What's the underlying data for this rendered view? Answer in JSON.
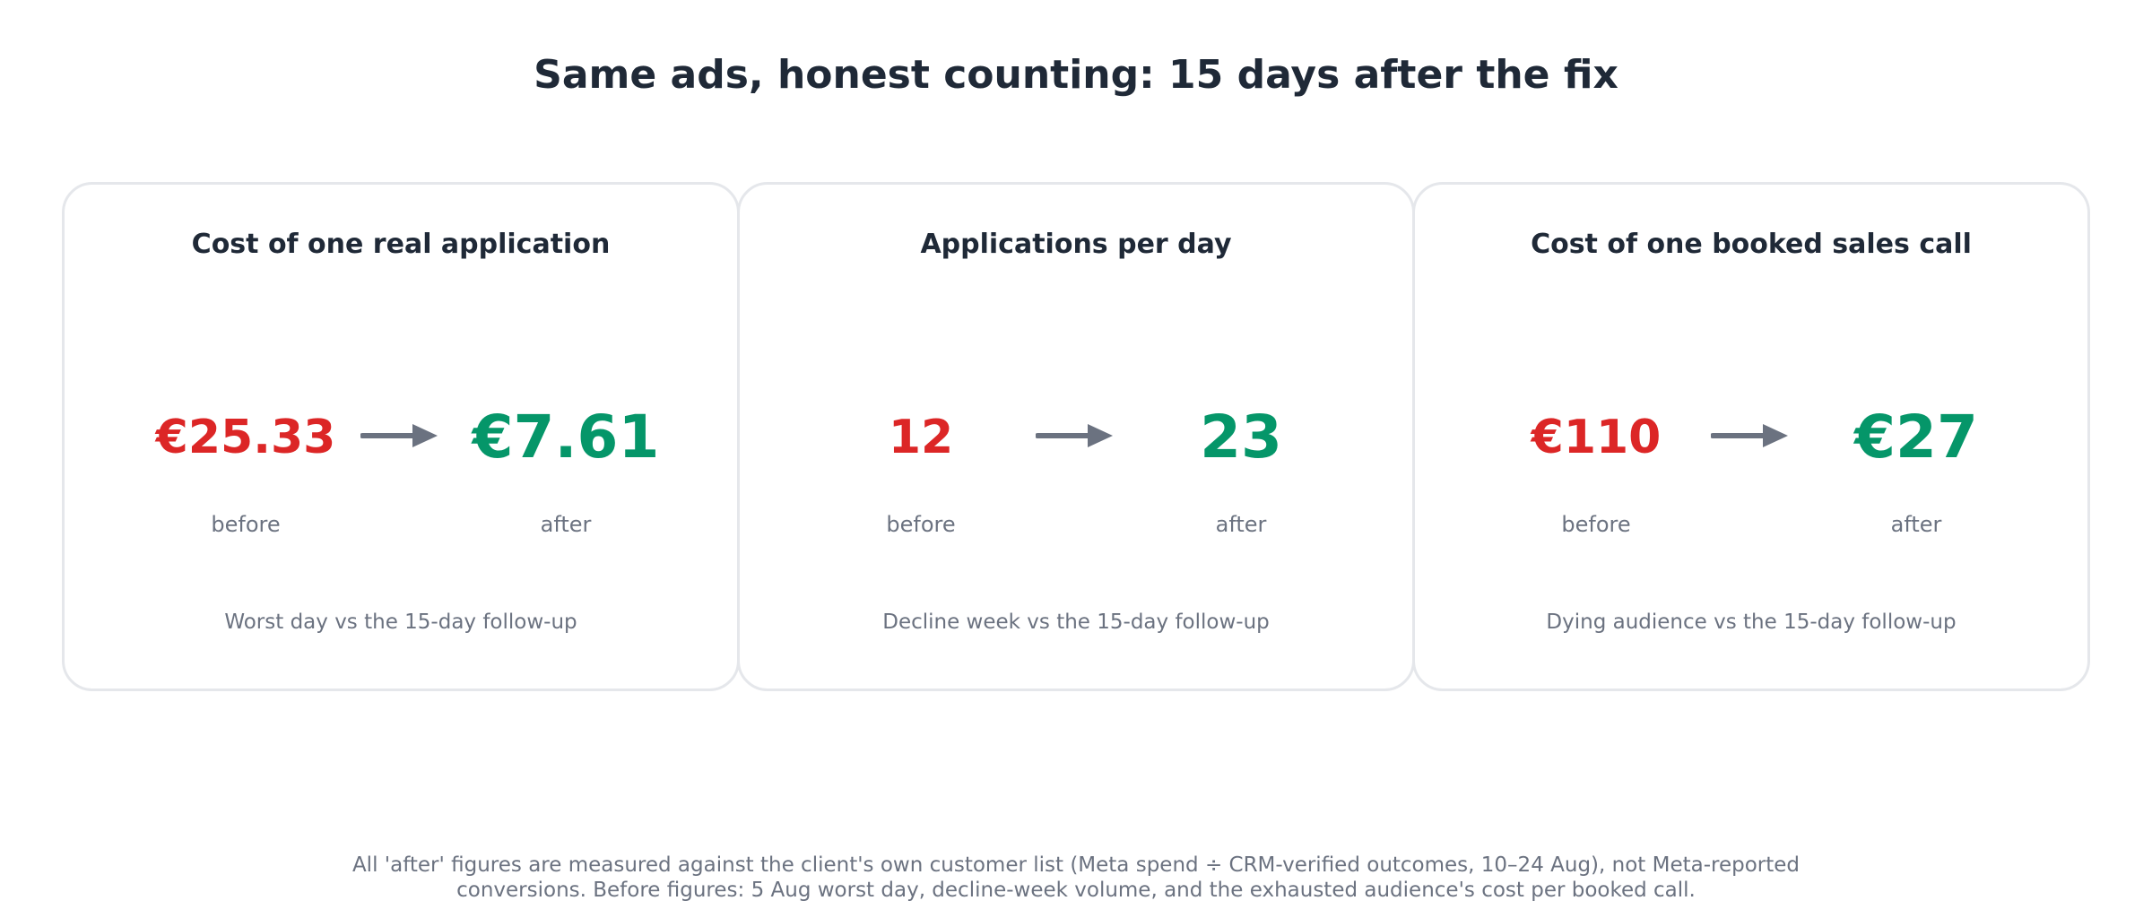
{
  "title": "Same ads, honest counting: 15 days after the fix",
  "colors": {
    "before": "#dc2626",
    "after": "#059669",
    "arrow": "#6b7280",
    "text": "#1f2937"
  },
  "chart_data": {
    "type": "table",
    "columns": [
      "before",
      "after"
    ],
    "rows": [
      {
        "metric": "Cost of one real application",
        "before": "€25.33",
        "after": "€7.61",
        "before_value": 25.33,
        "after_value": 7.61,
        "unit": "EUR",
        "caption": "Worst day vs the 15-day follow-up"
      },
      {
        "metric": "Applications per day",
        "before": "12",
        "after": "23",
        "before_value": 12,
        "after_value": 23,
        "caption": "Decline week vs the 15-day follow-up"
      },
      {
        "metric": "Cost of one booked sales call",
        "before": "€110",
        "after": "€27",
        "before_value": 110,
        "after_value": 27,
        "unit": "EUR",
        "caption": "Dying audience vs the 15-day follow-up"
      }
    ]
  },
  "cards": [
    {
      "title": "Cost of one real application",
      "before": "€25.33",
      "after": "€7.61",
      "before_label": "before",
      "after_label": "after",
      "caption": "Worst day vs the 15-day follow-up"
    },
    {
      "title": "Applications per day",
      "before": "12",
      "after": "23",
      "before_label": "before",
      "after_label": "after",
      "caption": "Decline week vs the 15-day follow-up"
    },
    {
      "title": "Cost of one booked sales call",
      "before": "€110",
      "after": "€27",
      "before_label": "before",
      "after_label": "after",
      "caption": "Dying audience vs the 15-day follow-up"
    }
  ],
  "footnote": {
    "line1": "All 'after' figures are measured against the client's own customer list (Meta spend ÷ CRM-verified outcomes, 10–24 Aug), not Meta-reported",
    "line2": "conversions. Before figures: 5 Aug worst day, decline-week volume, and the exhausted audience's cost per booked call."
  }
}
